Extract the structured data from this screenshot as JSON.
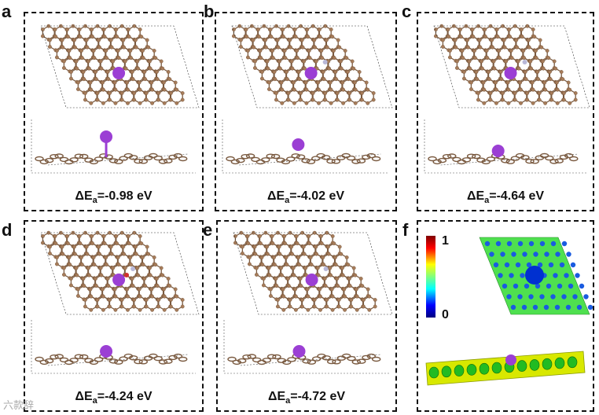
{
  "panels": [
    {
      "label": "a",
      "energy_prefix": "ΔE",
      "energy_sub": "a",
      "energy_value": "=-0.98 eV"
    },
    {
      "label": "b",
      "energy_prefix": "ΔE",
      "energy_sub": "a",
      "energy_value": "=-4.02 eV"
    },
    {
      "label": "c",
      "energy_prefix": "ΔE",
      "energy_sub": "a",
      "energy_value": "=-4.64 eV"
    },
    {
      "label": "d",
      "energy_prefix": "ΔE",
      "energy_sub": "a",
      "energy_value": "=-4.24 eV"
    },
    {
      "label": "e",
      "energy_prefix": "ΔE",
      "energy_sub": "a",
      "energy_value": "=-4.72 eV"
    },
    {
      "label": "f"
    }
  ],
  "colorbar": {
    "max_label": "1",
    "min_label": "0"
  },
  "colors": {
    "carbon": "#a67c5a",
    "bond": "#7a5a40",
    "nitrogen": "#b8b8d8",
    "oxygen": "#d03030",
    "potassium": "#9b3fd4"
  },
  "watermark": "六款辞"
}
